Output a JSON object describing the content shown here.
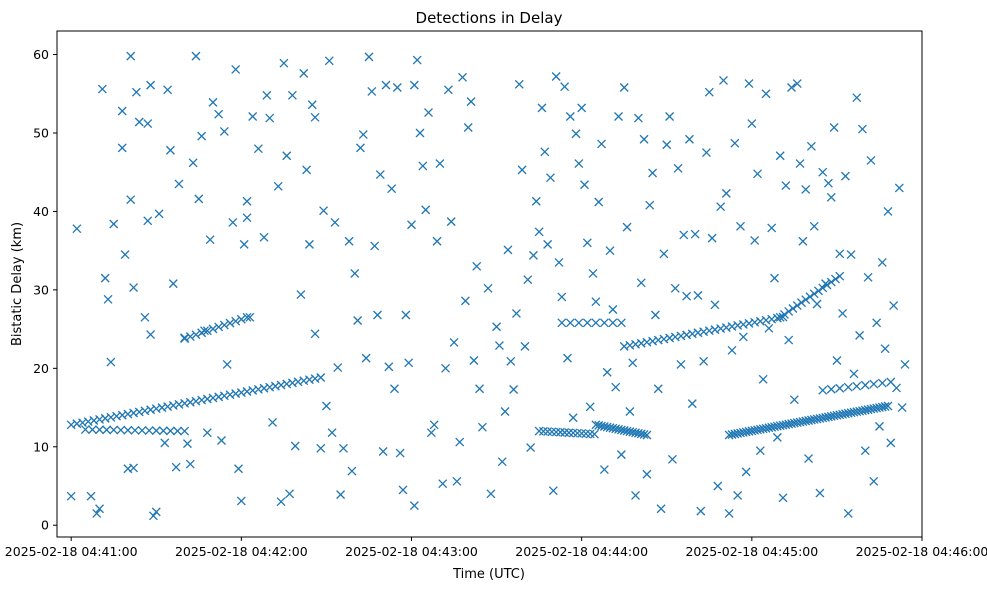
{
  "chart_data": {
    "type": "scatter",
    "title": "Detections in Delay",
    "xlabel": "Time (UTC)",
    "ylabel": "Bistatic Delay (km)",
    "marker": "x",
    "color": "#1f77b4",
    "grid": false,
    "legend": "none",
    "x_unit": "seconds after 2025-02-18 04:41:00 UTC",
    "xlim": [
      -5,
      300
    ],
    "ylim": [
      -1.5,
      63
    ],
    "xticks": [
      {
        "value": 0,
        "label": "2025-02-18 04:41:00"
      },
      {
        "value": 60,
        "label": "2025-02-18 04:42:00"
      },
      {
        "value": 120,
        "label": "2025-02-18 04:43:00"
      },
      {
        "value": 180,
        "label": "2025-02-18 04:44:00"
      },
      {
        "value": 240,
        "label": "2025-02-18 04:45:00"
      },
      {
        "value": 300,
        "label": "2025-02-18 04:46:00"
      }
    ],
    "yticks": [
      {
        "value": 0,
        "label": "0"
      },
      {
        "value": 10,
        "label": "10"
      },
      {
        "value": 20,
        "label": "20"
      },
      {
        "value": 30,
        "label": "30"
      },
      {
        "value": 40,
        "label": "40"
      },
      {
        "value": 50,
        "label": "50"
      },
      {
        "value": 60,
        "label": "60"
      }
    ],
    "tracks": [
      {
        "t0": 0,
        "t1": 89,
        "d0": 12.8,
        "d1": 18.9,
        "step": 2
      },
      {
        "t0": 5,
        "t1": 40,
        "d0": 12.2,
        "d1": 12.0,
        "step": 2.5
      },
      {
        "t0": 40,
        "t1": 62,
        "d0": 23.8,
        "d1": 26.5,
        "step": 2
      },
      {
        "t0": 165,
        "t1": 185,
        "d0": 12.0,
        "d1": 11.6,
        "step": 1.5
      },
      {
        "t0": 185,
        "t1": 203,
        "d0": 12.8,
        "d1": 11.5,
        "step": 1
      },
      {
        "t0": 173,
        "t1": 195,
        "d0": 25.8,
        "d1": 25.8,
        "step": 3
      },
      {
        "t0": 195,
        "t1": 252,
        "d0": 22.8,
        "d1": 26.6,
        "step": 2
      },
      {
        "t0": 232,
        "t1": 288,
        "d0": 11.5,
        "d1": 15.2,
        "step": 1
      },
      {
        "t0": 250,
        "t1": 272,
        "d0": 26.5,
        "d1": 32.0,
        "step": 1.5
      },
      {
        "t0": 265,
        "t1": 290,
        "d0": 17.2,
        "d1": 18.3,
        "step": 3
      }
    ],
    "scatter": [
      [
        0,
        3.7
      ],
      [
        2,
        37.8
      ],
      [
        7,
        3.7
      ],
      [
        9,
        1.5
      ],
      [
        10,
        2.1
      ],
      [
        11,
        55.6
      ],
      [
        12,
        31.5
      ],
      [
        13,
        28.8
      ],
      [
        14,
        20.8
      ],
      [
        15,
        38.4
      ],
      [
        18,
        52.8
      ],
      [
        18,
        48.1
      ],
      [
        19,
        34.5
      ],
      [
        20,
        7.2
      ],
      [
        21,
        59.8
      ],
      [
        21,
        41.5
      ],
      [
        22,
        30.3
      ],
      [
        22,
        7.3
      ],
      [
        23,
        55.2
      ],
      [
        24,
        51.4
      ],
      [
        26,
        26.5
      ],
      [
        27,
        51.2
      ],
      [
        27,
        38.8
      ],
      [
        28,
        56.1
      ],
      [
        28,
        24.3
      ],
      [
        29,
        1.2
      ],
      [
        30,
        1.7
      ],
      [
        31,
        39.7
      ],
      [
        33,
        10.5
      ],
      [
        34,
        55.5
      ],
      [
        35,
        47.8
      ],
      [
        36,
        30.8
      ],
      [
        37,
        7.4
      ],
      [
        38,
        43.5
      ],
      [
        40,
        23.9
      ],
      [
        41,
        10.4
      ],
      [
        42,
        7.8
      ],
      [
        43,
        46.2
      ],
      [
        44,
        59.8
      ],
      [
        45,
        41.6
      ],
      [
        46,
        49.6
      ],
      [
        47,
        24.8
      ],
      [
        48,
        11.8
      ],
      [
        49,
        36.4
      ],
      [
        50,
        53.9
      ],
      [
        52,
        52.4
      ],
      [
        53,
        10.8
      ],
      [
        54,
        50.2
      ],
      [
        55,
        20.5
      ],
      [
        57,
        38.6
      ],
      [
        58,
        58.1
      ],
      [
        59,
        7.2
      ],
      [
        60,
        3.1
      ],
      [
        61,
        35.8
      ],
      [
        62,
        39.2
      ],
      [
        62,
        41.3
      ],
      [
        63,
        26.5
      ],
      [
        64,
        52.1
      ],
      [
        66,
        48.0
      ],
      [
        68,
        36.7
      ],
      [
        69,
        54.8
      ],
      [
        70,
        51.9
      ],
      [
        71,
        13.1
      ],
      [
        73,
        43.2
      ],
      [
        74,
        3.0
      ],
      [
        75,
        58.9
      ],
      [
        76,
        47.1
      ],
      [
        77,
        4.0
      ],
      [
        78,
        54.8
      ],
      [
        79,
        10.1
      ],
      [
        81,
        29.4
      ],
      [
        82,
        57.6
      ],
      [
        83,
        45.3
      ],
      [
        84,
        35.8
      ],
      [
        85,
        53.6
      ],
      [
        86,
        52.0
      ],
      [
        86,
        24.4
      ],
      [
        88,
        9.8
      ],
      [
        89,
        40.1
      ],
      [
        90,
        15.2
      ],
      [
        91,
        59.2
      ],
      [
        92,
        11.8
      ],
      [
        93,
        38.6
      ],
      [
        94,
        20.1
      ],
      [
        95,
        3.9
      ],
      [
        96,
        9.8
      ],
      [
        98,
        36.2
      ],
      [
        99,
        6.9
      ],
      [
        100,
        32.1
      ],
      [
        101,
        26.1
      ],
      [
        102,
        48.1
      ],
      [
        103,
        49.8
      ],
      [
        104,
        21.3
      ],
      [
        105,
        59.7
      ],
      [
        106,
        55.3
      ],
      [
        107,
        35.6
      ],
      [
        108,
        26.8
      ],
      [
        109,
        44.7
      ],
      [
        110,
        9.4
      ],
      [
        111,
        56.1
      ],
      [
        112,
        20.2
      ],
      [
        113,
        42.9
      ],
      [
        114,
        17.4
      ],
      [
        115,
        55.8
      ],
      [
        116,
        9.2
      ],
      [
        117,
        4.5
      ],
      [
        118,
        26.8
      ],
      [
        119,
        20.7
      ],
      [
        120,
        38.3
      ],
      [
        121,
        2.5
      ],
      [
        121,
        56.1
      ],
      [
        122,
        59.3
      ],
      [
        123,
        50.0
      ],
      [
        124,
        45.8
      ],
      [
        125,
        40.2
      ],
      [
        126,
        52.6
      ],
      [
        127,
        11.8
      ],
      [
        128,
        12.8
      ],
      [
        129,
        36.2
      ],
      [
        130,
        46.1
      ],
      [
        131,
        5.3
      ],
      [
        132,
        20.0
      ],
      [
        133,
        55.5
      ],
      [
        134,
        38.7
      ],
      [
        135,
        23.3
      ],
      [
        136,
        5.6
      ],
      [
        137,
        10.6
      ],
      [
        138,
        57.1
      ],
      [
        139,
        28.6
      ],
      [
        140,
        50.7
      ],
      [
        141,
        54.0
      ],
      [
        142,
        21.0
      ],
      [
        143,
        33.0
      ],
      [
        144,
        17.4
      ],
      [
        145,
        12.5
      ],
      [
        147,
        30.2
      ],
      [
        148,
        4.0
      ],
      [
        150,
        25.3
      ],
      [
        151,
        22.9
      ],
      [
        152,
        8.1
      ],
      [
        153,
        14.5
      ],
      [
        154,
        35.1
      ],
      [
        155,
        20.9
      ],
      [
        156,
        17.3
      ],
      [
        157,
        27.0
      ],
      [
        158,
        56.2
      ],
      [
        159,
        45.3
      ],
      [
        160,
        22.8
      ],
      [
        161,
        31.3
      ],
      [
        162,
        9.9
      ],
      [
        163,
        34.4
      ],
      [
        164,
        41.3
      ],
      [
        165,
        37.4
      ],
      [
        166,
        53.2
      ],
      [
        167,
        47.6
      ],
      [
        168,
        35.8
      ],
      [
        169,
        44.3
      ],
      [
        170,
        4.4
      ],
      [
        171,
        57.2
      ],
      [
        172,
        33.5
      ],
      [
        173,
        29.1
      ],
      [
        174,
        55.9
      ],
      [
        175,
        21.3
      ],
      [
        176,
        52.1
      ],
      [
        177,
        13.7
      ],
      [
        178,
        49.9
      ],
      [
        179,
        46.1
      ],
      [
        180,
        53.2
      ],
      [
        181,
        43.4
      ],
      [
        182,
        36.0
      ],
      [
        183,
        15.1
      ],
      [
        184,
        32.1
      ],
      [
        185,
        28.5
      ],
      [
        186,
        41.2
      ],
      [
        187,
        48.6
      ],
      [
        188,
        7.1
      ],
      [
        189,
        19.5
      ],
      [
        190,
        35.0
      ],
      [
        191,
        27.5
      ],
      [
        192,
        17.6
      ],
      [
        193,
        52.1
      ],
      [
        194,
        9.0
      ],
      [
        195,
        55.8
      ],
      [
        196,
        38.0
      ],
      [
        197,
        14.5
      ],
      [
        198,
        20.7
      ],
      [
        199,
        3.8
      ],
      [
        200,
        51.9
      ],
      [
        201,
        30.9
      ],
      [
        202,
        49.2
      ],
      [
        203,
        6.5
      ],
      [
        204,
        40.8
      ],
      [
        205,
        44.9
      ],
      [
        206,
        26.8
      ],
      [
        207,
        17.4
      ],
      [
        208,
        2.1
      ],
      [
        209,
        34.6
      ],
      [
        210,
        48.5
      ],
      [
        211,
        52.1
      ],
      [
        212,
        8.4
      ],
      [
        213,
        30.2
      ],
      [
        214,
        45.5
      ],
      [
        215,
        20.5
      ],
      [
        216,
        37.0
      ],
      [
        217,
        29.2
      ],
      [
        218,
        49.2
      ],
      [
        219,
        15.5
      ],
      [
        220,
        37.1
      ],
      [
        221,
        29.3
      ],
      [
        222,
        1.8
      ],
      [
        223,
        20.9
      ],
      [
        224,
        47.5
      ],
      [
        225,
        55.2
      ],
      [
        226,
        36.6
      ],
      [
        227,
        28.1
      ],
      [
        228,
        5.0
      ],
      [
        229,
        40.6
      ],
      [
        230,
        56.7
      ],
      [
        231,
        42.3
      ],
      [
        232,
        1.5
      ],
      [
        233,
        22.3
      ],
      [
        234,
        48.7
      ],
      [
        235,
        3.8
      ],
      [
        236,
        38.1
      ],
      [
        237,
        24.0
      ],
      [
        238,
        6.8
      ],
      [
        239,
        56.3
      ],
      [
        240,
        51.2
      ],
      [
        241,
        36.3
      ],
      [
        242,
        44.8
      ],
      [
        243,
        9.5
      ],
      [
        244,
        18.6
      ],
      [
        245,
        55.0
      ],
      [
        246,
        25.1
      ],
      [
        247,
        37.9
      ],
      [
        248,
        31.5
      ],
      [
        249,
        11.2
      ],
      [
        250,
        47.1
      ],
      [
        251,
        3.5
      ],
      [
        252,
        43.3
      ],
      [
        253,
        23.6
      ],
      [
        254,
        55.8
      ],
      [
        255,
        16.0
      ],
      [
        256,
        56.3
      ],
      [
        257,
        46.1
      ],
      [
        258,
        36.2
      ],
      [
        259,
        42.8
      ],
      [
        260,
        8.5
      ],
      [
        261,
        48.3
      ],
      [
        262,
        38.1
      ],
      [
        263,
        28.2
      ],
      [
        264,
        4.1
      ],
      [
        265,
        45.0
      ],
      [
        266,
        30.8
      ],
      [
        267,
        43.6
      ],
      [
        268,
        41.8
      ],
      [
        269,
        50.7
      ],
      [
        270,
        21.0
      ],
      [
        271,
        34.6
      ],
      [
        272,
        27.0
      ],
      [
        273,
        44.5
      ],
      [
        274,
        1.5
      ],
      [
        275,
        34.5
      ],
      [
        276,
        19.3
      ],
      [
        277,
        54.5
      ],
      [
        278,
        24.2
      ],
      [
        279,
        50.5
      ],
      [
        280,
        9.5
      ],
      [
        281,
        31.6
      ],
      [
        282,
        46.5
      ],
      [
        283,
        5.6
      ],
      [
        284,
        25.8
      ],
      [
        285,
        12.6
      ],
      [
        286,
        33.5
      ],
      [
        287,
        22.5
      ],
      [
        288,
        40.0
      ],
      [
        289,
        10.5
      ],
      [
        290,
        28.0
      ],
      [
        291,
        17.5
      ],
      [
        292,
        43.0
      ],
      [
        293,
        15.0
      ],
      [
        294,
        20.5
      ]
    ]
  }
}
